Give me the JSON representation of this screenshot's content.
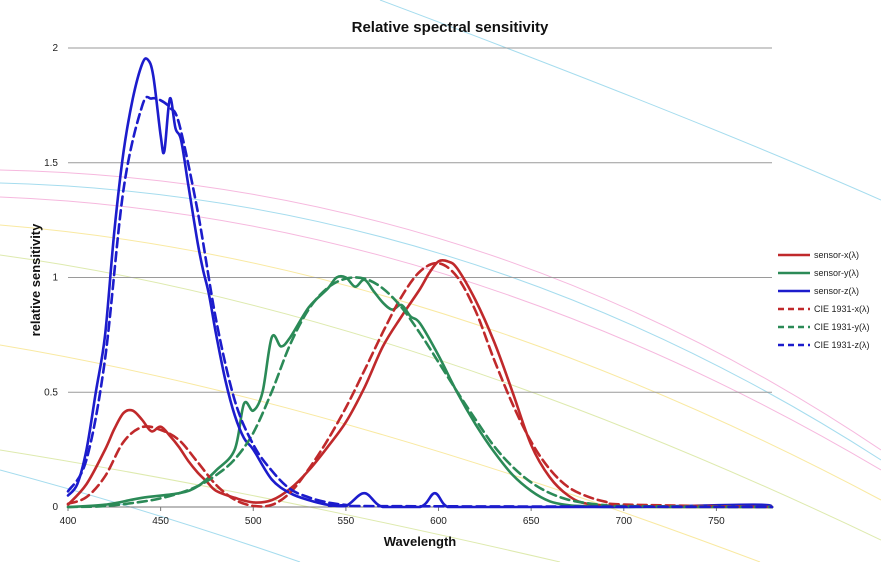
{
  "chart_data": {
    "type": "line",
    "title": "Relative spectral sensitivity",
    "xlabel": "Wavelength",
    "ylabel": "relative sensitivity",
    "xlim": [
      400,
      780
    ],
    "ylim": [
      0,
      2
    ],
    "x_ticks": [
      "400",
      "450",
      "500",
      "550",
      "600",
      "650",
      "700",
      "750"
    ],
    "y_ticks": [
      "0",
      "0.5",
      "1",
      "1.5",
      "2"
    ],
    "grid": "horizontal",
    "legend_position": "right",
    "colors": {
      "red": "#c0292b",
      "green": "#2b8a57",
      "blue": "#1c1ccc"
    },
    "series": [
      {
        "name": "sensor-x(λ)",
        "color": "red",
        "dash": false,
        "x": [
          400,
          410,
          420,
          425,
          430,
          435,
          440,
          445,
          450,
          455,
          460,
          465,
          470,
          475,
          480,
          490,
          500,
          510,
          520,
          530,
          540,
          550,
          560,
          570,
          580,
          590,
          595,
          600,
          605,
          610,
          620,
          630,
          640,
          650,
          660,
          670,
          680,
          700,
          730,
          780
        ],
        "y": [
          0.01,
          0.1,
          0.25,
          0.34,
          0.41,
          0.42,
          0.38,
          0.33,
          0.35,
          0.31,
          0.26,
          0.2,
          0.15,
          0.11,
          0.07,
          0.04,
          0.02,
          0.03,
          0.08,
          0.16,
          0.26,
          0.37,
          0.52,
          0.7,
          0.83,
          0.95,
          1.02,
          1.07,
          1.07,
          1.04,
          0.9,
          0.72,
          0.5,
          0.27,
          0.13,
          0.05,
          0.015,
          0.003,
          0,
          0
        ]
      },
      {
        "name": "sensor-y(λ)",
        "color": "green",
        "dash": false,
        "x": [
          400,
          420,
          440,
          460,
          470,
          480,
          490,
          495,
          500,
          505,
          510,
          515,
          520,
          530,
          540,
          545,
          550,
          555,
          560,
          565,
          570,
          575,
          580,
          585,
          590,
          600,
          610,
          620,
          630,
          640,
          650,
          660,
          670,
          680,
          700,
          780
        ],
        "y": [
          0,
          0.01,
          0.04,
          0.06,
          0.09,
          0.16,
          0.25,
          0.45,
          0.42,
          0.5,
          0.74,
          0.7,
          0.74,
          0.87,
          0.95,
          1.0,
          1.0,
          0.96,
          0.99,
          0.94,
          0.89,
          0.86,
          0.88,
          0.83,
          0.8,
          0.66,
          0.5,
          0.36,
          0.24,
          0.14,
          0.07,
          0.025,
          0.008,
          0.003,
          0,
          0
        ]
      },
      {
        "name": "sensor-z(λ)",
        "color": "blue",
        "dash": false,
        "x": [
          400,
          405,
          410,
          415,
          420,
          425,
          430,
          435,
          440,
          443,
          446,
          450,
          452,
          455,
          458,
          461,
          465,
          470,
          473,
          476,
          480,
          485,
          490,
          495,
          500,
          510,
          520,
          530,
          540,
          550,
          560,
          570,
          590,
          598,
          605,
          620,
          700,
          770,
          780
        ],
        "y": [
          0.05,
          0.1,
          0.25,
          0.5,
          0.75,
          1.2,
          1.55,
          1.78,
          1.93,
          1.95,
          1.88,
          1.62,
          1.55,
          1.78,
          1.65,
          1.6,
          1.4,
          1.15,
          1.03,
          0.93,
          0.75,
          0.55,
          0.4,
          0.3,
          0.25,
          0.12,
          0.06,
          0.03,
          0.01,
          0.005,
          0.06,
          0.0,
          0.0,
          0.06,
          0.0,
          0,
          0,
          0.01,
          0
        ]
      },
      {
        "name": "CIE 1931-x(λ)",
        "color": "red",
        "dash": true,
        "x": [
          400,
          410,
          420,
          430,
          440,
          450,
          460,
          470,
          480,
          490,
          500,
          510,
          520,
          530,
          540,
          550,
          560,
          570,
          580,
          590,
          600,
          610,
          620,
          630,
          640,
          650,
          660,
          670,
          680,
          690,
          700,
          780
        ],
        "y": [
          0.014,
          0.043,
          0.134,
          0.284,
          0.348,
          0.336,
          0.291,
          0.195,
          0.096,
          0.032,
          0.005,
          0.009,
          0.063,
          0.166,
          0.29,
          0.433,
          0.595,
          0.762,
          0.916,
          1.026,
          1.062,
          1.003,
          0.854,
          0.642,
          0.448,
          0.284,
          0.165,
          0.087,
          0.047,
          0.023,
          0.011,
          0
        ]
      },
      {
        "name": "CIE 1931-y(λ)",
        "color": "green",
        "dash": true,
        "x": [
          400,
          420,
          440,
          450,
          460,
          470,
          480,
          490,
          500,
          510,
          520,
          530,
          540,
          550,
          560,
          570,
          580,
          590,
          600,
          610,
          620,
          630,
          640,
          650,
          660,
          670,
          680,
          690,
          700,
          780
        ],
        "y": [
          0,
          0.004,
          0.023,
          0.038,
          0.06,
          0.091,
          0.139,
          0.208,
          0.323,
          0.503,
          0.71,
          0.862,
          0.954,
          0.995,
          0.995,
          0.952,
          0.87,
          0.757,
          0.631,
          0.503,
          0.381,
          0.265,
          0.175,
          0.107,
          0.061,
          0.032,
          0.017,
          0.008,
          0.004,
          0
        ]
      },
      {
        "name": "CIE 1931-z(λ)",
        "color": "blue",
        "dash": true,
        "x": [
          400,
          410,
          420,
          430,
          440,
          445,
          450,
          455,
          460,
          470,
          480,
          490,
          500,
          510,
          520,
          530,
          540,
          550,
          560,
          780
        ],
        "y": [
          0.068,
          0.207,
          0.646,
          1.386,
          1.747,
          1.78,
          1.772,
          1.74,
          1.669,
          1.288,
          0.813,
          0.465,
          0.272,
          0.158,
          0.078,
          0.042,
          0.02,
          0.009,
          0.004,
          0
        ]
      }
    ]
  }
}
